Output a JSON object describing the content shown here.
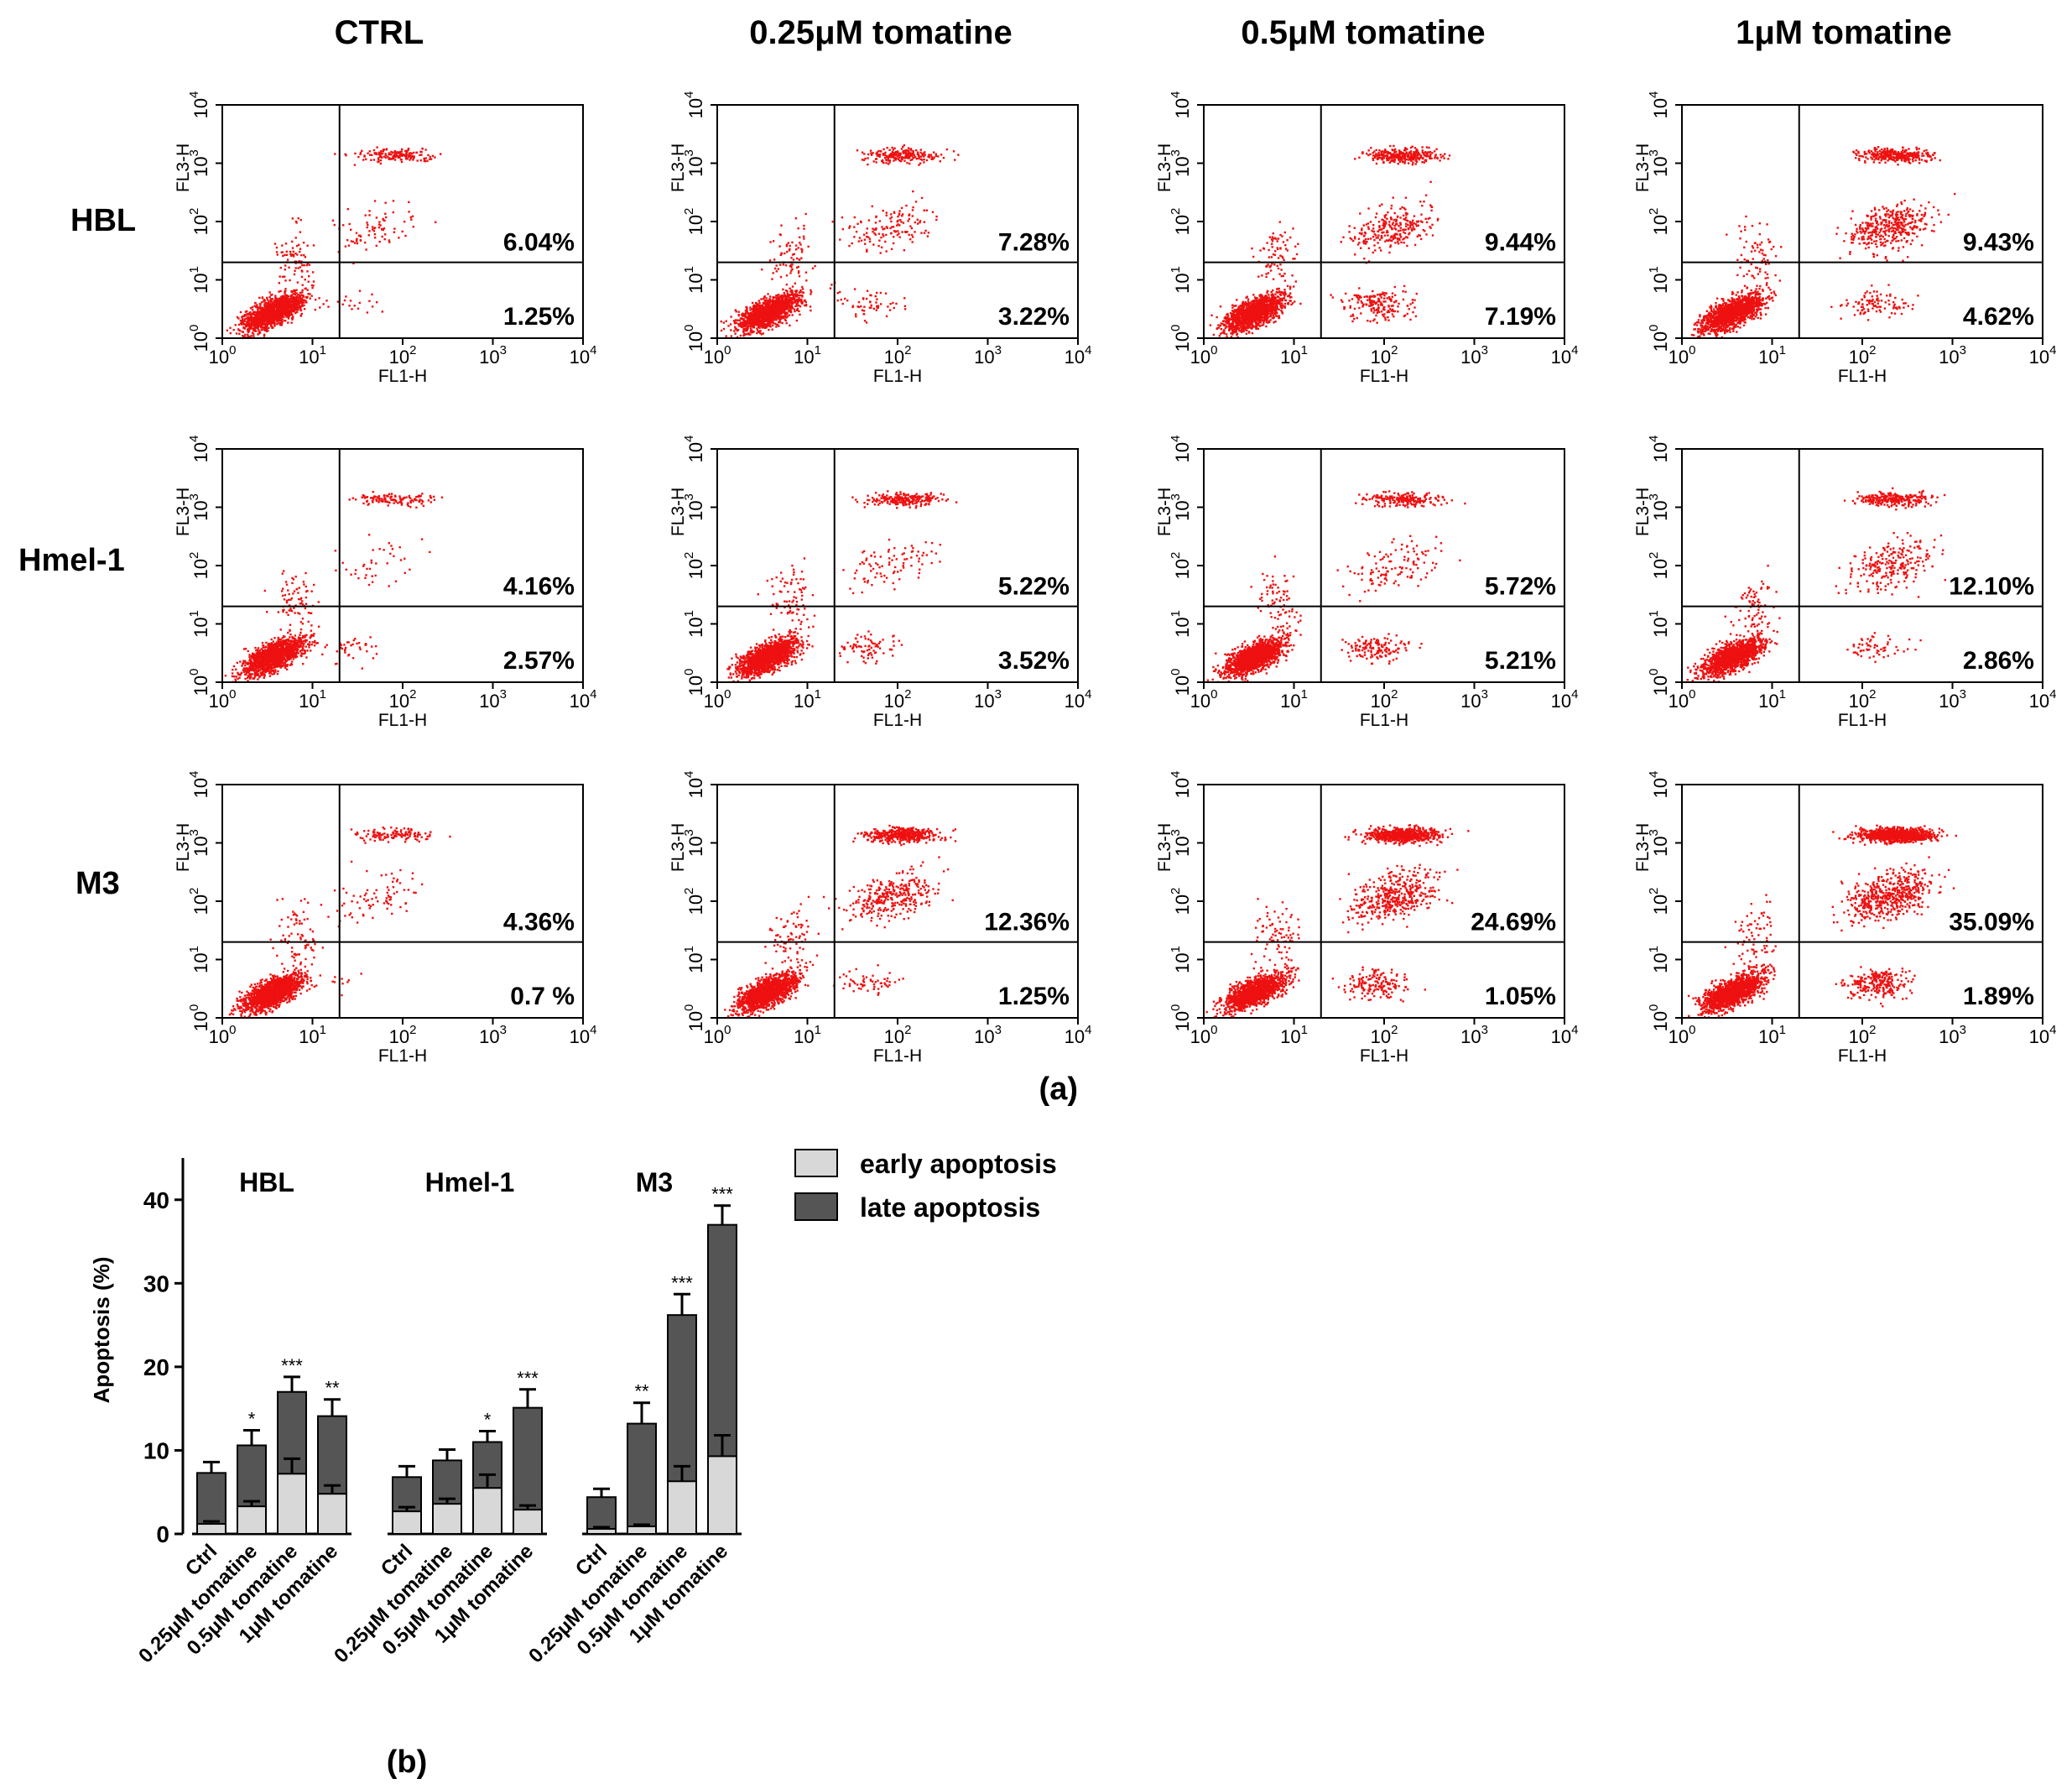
{
  "panel_a": {
    "column_titles": [
      "CTRL",
      "0.25μM tomatine",
      "0.5μM tomatine",
      "1μM tomatine"
    ],
    "row_labels": [
      "HBL",
      "Hmel-1",
      "M3"
    ],
    "x_axis_label": "FL1-H",
    "y_axis_label": "FL3-H",
    "tick_labels": [
      "10",
      "10",
      "10",
      "10",
      "10"
    ],
    "tick_exponents": [
      "0",
      "1",
      "2",
      "3",
      "4"
    ],
    "percentages": [
      [
        [
          "6.04%",
          "1.25%"
        ],
        [
          "7.28%",
          "3.22%"
        ],
        [
          "9.44%",
          "7.19%"
        ],
        [
          "9.43%",
          "4.62%"
        ]
      ],
      [
        [
          "4.16%",
          "2.57%"
        ],
        [
          "5.22%",
          "3.52%"
        ],
        [
          "5.72%",
          "5.21%"
        ],
        [
          "12.10%",
          "2.86%"
        ]
      ],
      [
        [
          "4.36%",
          "0.7 %"
        ],
        [
          "12.36%",
          "1.25%"
        ],
        [
          "24.69%",
          "1.05%"
        ],
        [
          "35.09%",
          "1.89%"
        ]
      ]
    ],
    "panel_label": "(a)"
  },
  "panel_b": {
    "panel_label": "(b)",
    "legend": [
      "early apoptosis",
      "late apoptosis"
    ],
    "colors": {
      "early": "#d8d8d8",
      "late": "#555555",
      "dots": "#ee1111"
    },
    "chart_data": {
      "type": "bar",
      "stacked": true,
      "ylabel": "Apoptosis (%)",
      "ylim": [
        0,
        45
      ],
      "yticks": [
        "0",
        "10",
        "20",
        "30",
        "40"
      ],
      "groups": [
        {
          "name": "HBL",
          "categories": [
            "Ctrl",
            "0.25μM tomatine",
            "0.5μM tomatine",
            "1μM tomatine"
          ],
          "early": [
            1.2,
            3.3,
            7.2,
            4.8
          ],
          "early_err": [
            0.3,
            0.6,
            1.8,
            1.0
          ],
          "total": [
            7.3,
            10.6,
            17.0,
            14.1
          ],
          "total_err": [
            1.3,
            1.8,
            1.8,
            2.0
          ],
          "sig": [
            "",
            "*",
            "***",
            "**"
          ]
        },
        {
          "name": "Hmel-1",
          "categories": [
            "Ctrl",
            "0.25μM tomatine",
            "0.5μM tomatine",
            "1μM tomatine"
          ],
          "early": [
            2.7,
            3.6,
            5.5,
            2.9
          ],
          "early_err": [
            0.5,
            0.6,
            1.6,
            0.5
          ],
          "total": [
            6.8,
            8.8,
            11.0,
            15.1
          ],
          "total_err": [
            1.3,
            1.3,
            1.3,
            2.2
          ],
          "sig": [
            "",
            "",
            "*",
            "***"
          ]
        },
        {
          "name": "M3",
          "categories": [
            "Ctrl",
            "0.25μM tomatine",
            "0.5μM tomatine",
            "1μM tomatine"
          ],
          "early": [
            0.6,
            0.9,
            6.3,
            9.3
          ],
          "early_err": [
            0.2,
            0.2,
            1.8,
            2.5
          ],
          "total": [
            4.4,
            13.2,
            26.2,
            37.0
          ],
          "total_err": [
            1.0,
            2.5,
            2.5,
            2.3
          ],
          "sig": [
            "",
            "**",
            "***",
            "***"
          ]
        }
      ]
    }
  }
}
